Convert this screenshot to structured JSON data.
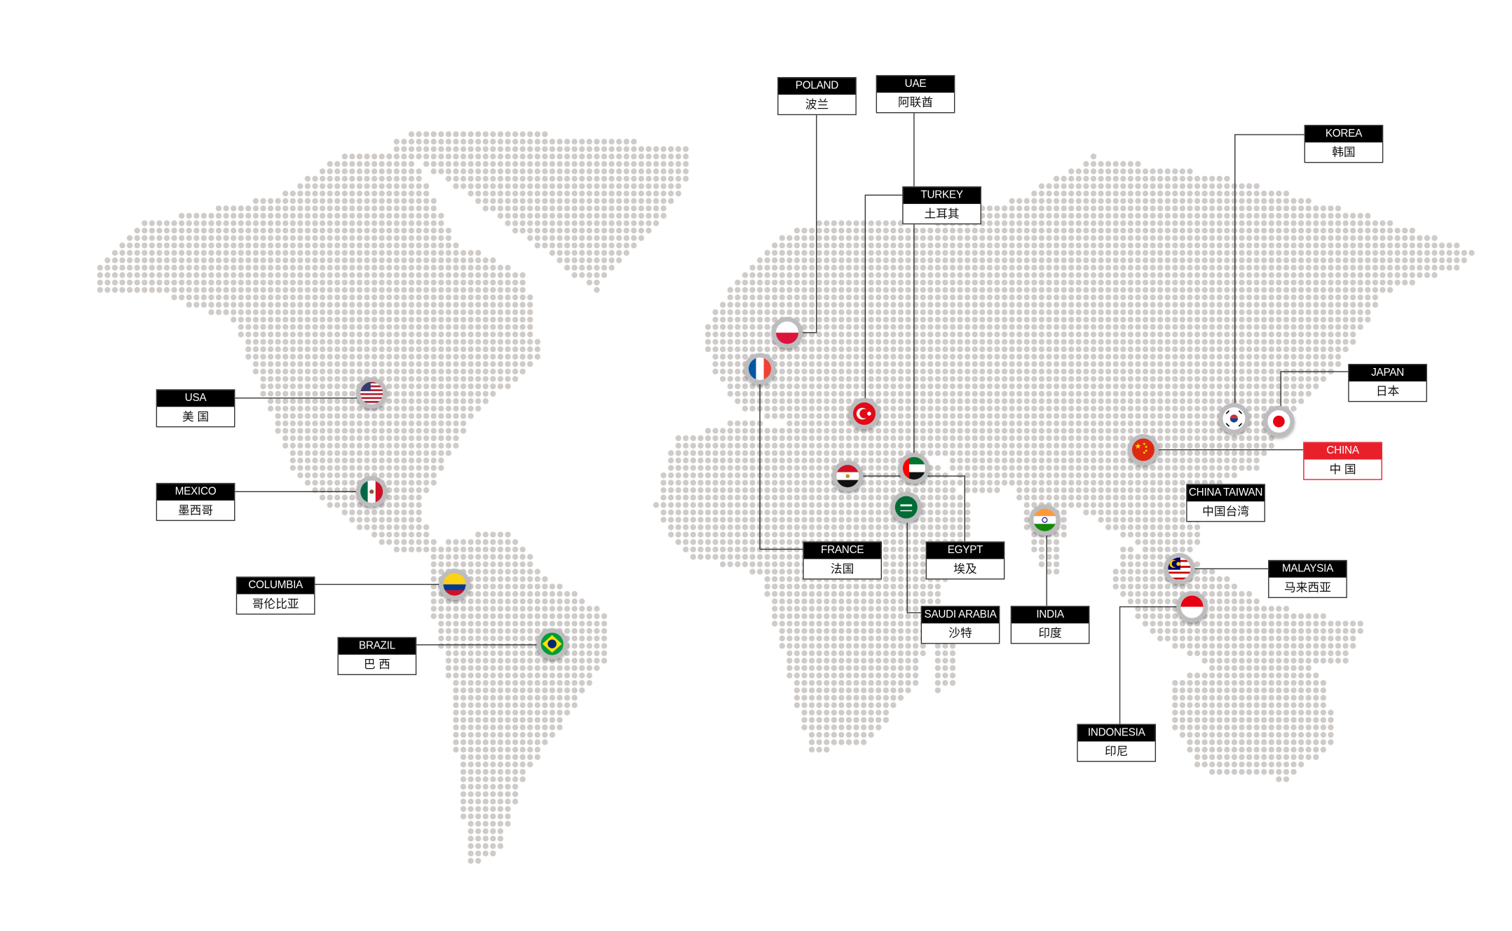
{
  "colors": {
    "dot": "#cfcbc8",
    "line": "#333333",
    "highlight": "#e8202a"
  },
  "countries": [
    {
      "id": "poland",
      "en": "POLAND",
      "zh": "波兰",
      "flag": "poland-flag"
    },
    {
      "id": "uae",
      "en": "UAE",
      "zh": "阿联酋",
      "flag": "uae-flag"
    },
    {
      "id": "turkey",
      "en": "TURKEY",
      "zh": "土耳其",
      "flag": "turkey-flag"
    },
    {
      "id": "korea",
      "en": "KOREA",
      "zh": "韩国",
      "flag": "korea-flag"
    },
    {
      "id": "japan",
      "en": "JAPAN",
      "zh": "日本",
      "flag": "japan-flag"
    },
    {
      "id": "china",
      "en": "CHINA",
      "zh": "中 国",
      "flag": "china-flag",
      "highlighted": true
    },
    {
      "id": "taiwan",
      "en": "CHINA TAIWAN",
      "zh": "中国台湾"
    },
    {
      "id": "malaysia",
      "en": "MALAYSIA",
      "zh": "马来西亚",
      "flag": "malaysia-flag"
    },
    {
      "id": "indonesia",
      "en": "INDONESIA",
      "zh": "印尼",
      "flag": "indonesia-flag"
    },
    {
      "id": "india",
      "en": "INDIA",
      "zh": "印度",
      "flag": "india-flag"
    },
    {
      "id": "saudi",
      "en": "SAUDI ARABIA",
      "zh": "沙特",
      "flag": "saudi-flag"
    },
    {
      "id": "egypt",
      "en": "EGYPT",
      "zh": "埃及",
      "flag": "egypt-flag"
    },
    {
      "id": "france",
      "en": "FRANCE",
      "zh": "法国",
      "flag": "france-flag"
    },
    {
      "id": "usa",
      "en": "USA",
      "zh": "美 国",
      "flag": "usa-flag"
    },
    {
      "id": "mexico",
      "en": "MEXICO",
      "zh": "墨西哥",
      "flag": "mexico-flag"
    },
    {
      "id": "columbia",
      "en": "COLUMBIA",
      "zh": "哥伦比亚",
      "flag": "colombia-flag"
    },
    {
      "id": "brazil",
      "en": "BRAZIL",
      "zh": "巴 西",
      "flag": "brazil-flag"
    }
  ]
}
